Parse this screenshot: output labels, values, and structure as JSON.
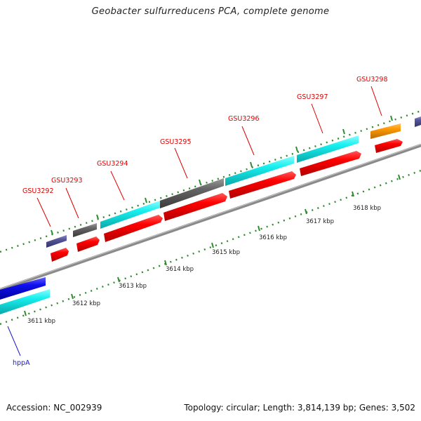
{
  "title": "Geobacter sulfurreducens PCA, complete genome",
  "footer": {
    "accession": "Accession: NC_002939",
    "stats": "Topology: circular; Length: 3,814,139 bp; Genes: 3,502"
  },
  "colors": {
    "red": "#ff0000",
    "cyan": "#18f0f0",
    "gray": "#666666",
    "purple": "#555599",
    "orange": "#ff9900",
    "blue": "#1010ee",
    "tick": "#2e8b2e",
    "axis": "#8a8a8a",
    "label_red": "#e00000",
    "label_blue": "#1a1acc"
  },
  "axis_labels": [
    "3611 kbp",
    "3612 kbp",
    "3613 kbp",
    "3614 kbp",
    "3615 kbp",
    "3616 kbp",
    "3617 kbp",
    "3618 kbp"
  ],
  "gene_labels": [
    "GSU3292",
    "GSU3293",
    "GSU3294",
    "GSU3295",
    "GSU3296",
    "GSU3297",
    "GSU3298",
    "hppA"
  ]
}
